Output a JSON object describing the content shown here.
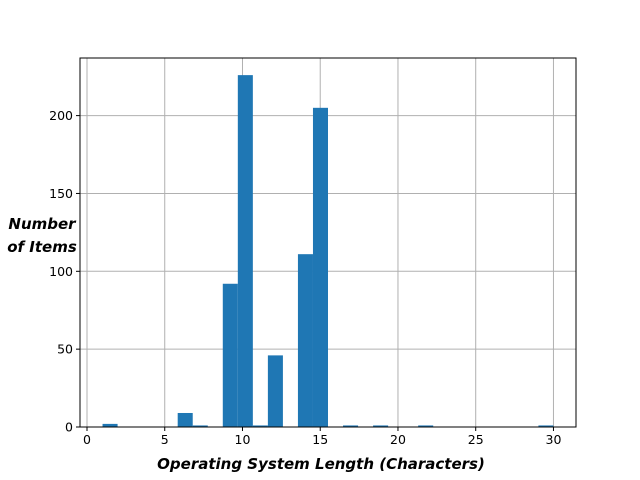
{
  "chart_data": {
    "type": "bar",
    "histogram": true,
    "xlabel": "Operating System Length (Characters)",
    "ylabel": [
      "Number",
      "of Items"
    ],
    "xlim": [
      -0.45,
      31.45
    ],
    "ylim": [
      0,
      237
    ],
    "xticks": [
      0,
      5,
      10,
      15,
      20,
      25,
      30
    ],
    "yticks": [
      0,
      50,
      100,
      150,
      200
    ],
    "grid": true,
    "bar_color": "#1f77b4",
    "bin_edges": [
      1,
      1.9667,
      2.9333,
      3.9,
      4.8667,
      5.8333,
      6.8,
      7.7667,
      8.7333,
      9.7,
      10.6667,
      11.6333,
      12.6,
      13.5667,
      14.5333,
      15.5,
      16.4667,
      17.4333,
      18.4,
      19.3667,
      20.3333,
      21.3,
      22.2667,
      23.2333,
      24.2,
      25.1667,
      26.1333,
      27.1,
      28.0667,
      29.0333,
      30
    ],
    "counts": [
      2,
      0,
      0,
      0,
      0,
      9,
      1,
      0,
      92,
      226,
      1,
      46,
      0,
      111,
      205,
      0,
      1,
      0,
      1,
      0,
      0,
      1,
      0,
      0,
      0,
      0,
      0,
      0,
      0,
      1
    ]
  }
}
